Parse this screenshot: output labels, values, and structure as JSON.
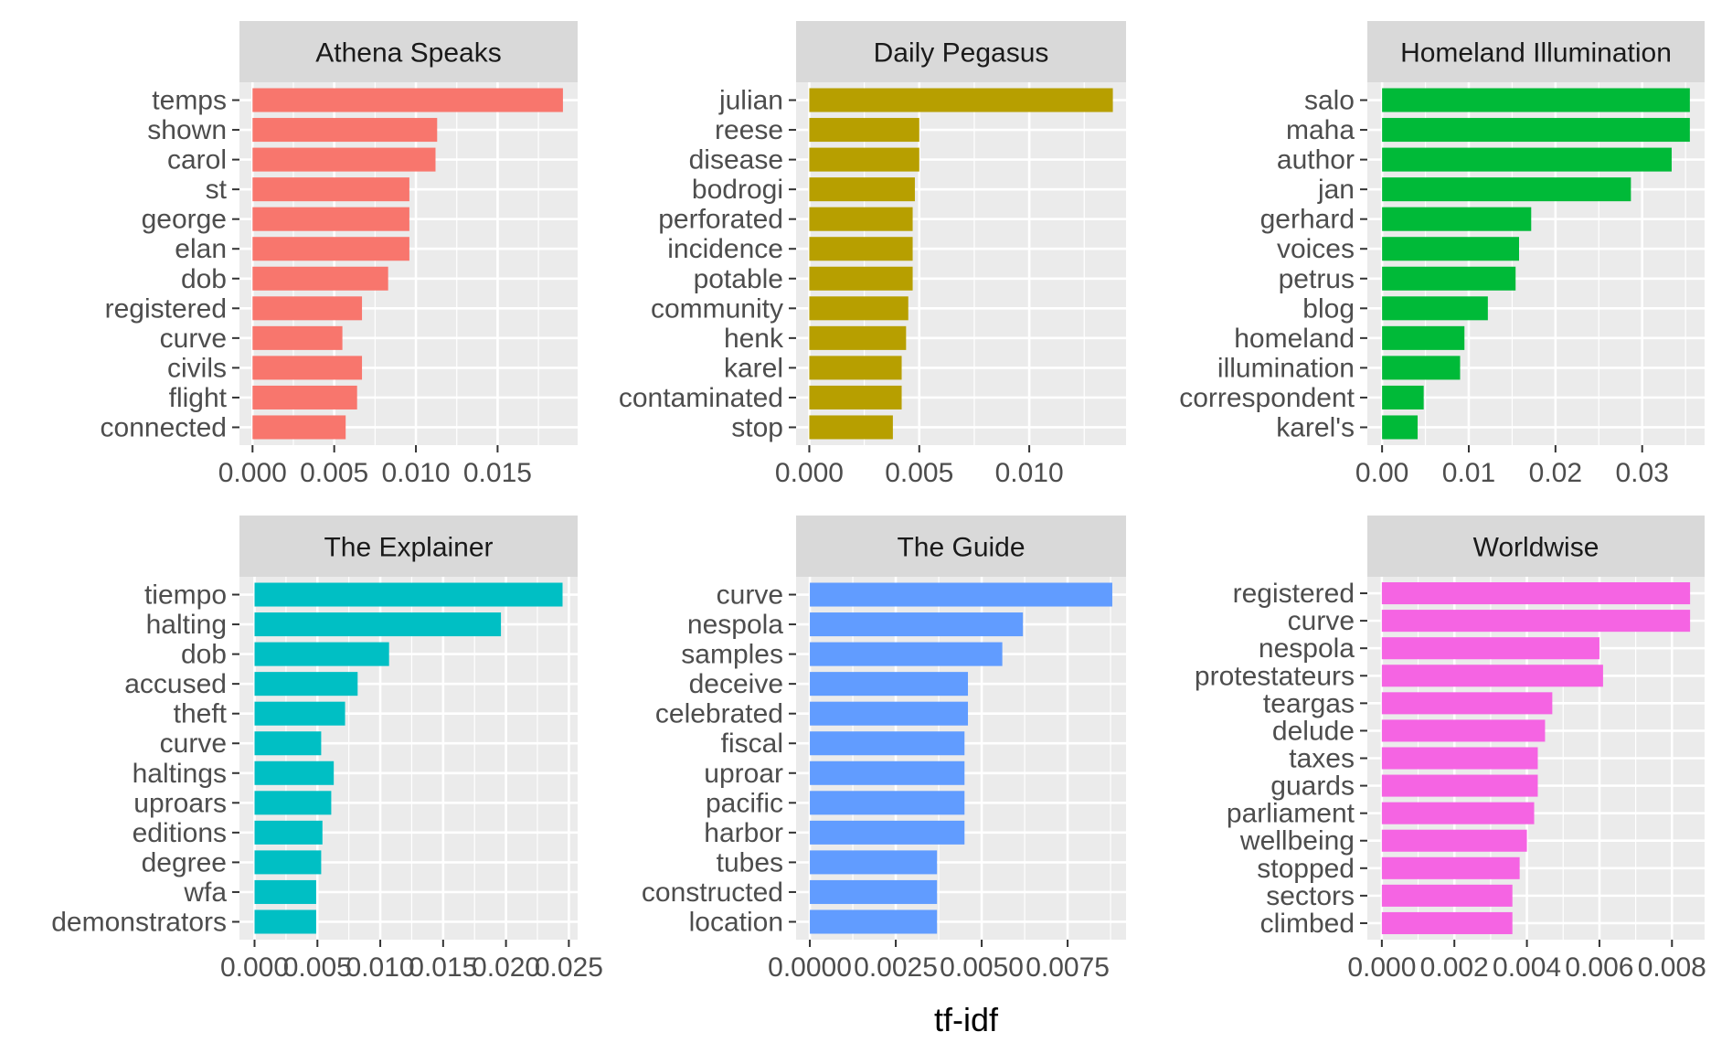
{
  "chart_data": {
    "type": "bar",
    "orientation": "horizontal",
    "facet_layout": "3 columns x 2 rows, independent scales",
    "xlabel": "tf-idf",
    "ylabel": "",
    "grid": true,
    "legend": "none",
    "panels": [
      {
        "title": "Athena Speaks",
        "color": "#F8766D",
        "categories": [
          "temps",
          "shown",
          "carol",
          "st",
          "george",
          "elan",
          "dob",
          "registered",
          "curve",
          "civils",
          "flight",
          "connected"
        ],
        "values": [
          0.019,
          0.0113,
          0.0112,
          0.0096,
          0.0096,
          0.0096,
          0.0083,
          0.0067,
          0.0055,
          0.0067,
          0.0064,
          0.0057
        ],
        "xlim": [
          -0.0008,
          0.0199
        ],
        "xticks": [
          0,
          0.005,
          0.01,
          0.015
        ],
        "xtick_labels": [
          "0.000",
          "0.005",
          "0.010",
          "0.015"
        ]
      },
      {
        "title": "Daily Pegasus",
        "color": "#B79F00",
        "categories": [
          "julian",
          "reese",
          "disease",
          "bodrogi",
          "perforated",
          "incidence",
          "potable",
          "community",
          "henk",
          "karel",
          "contaminated",
          "stop"
        ],
        "values": [
          0.0138,
          0.005,
          0.005,
          0.0048,
          0.0047,
          0.0047,
          0.0047,
          0.0045,
          0.0044,
          0.0042,
          0.0042,
          0.0038
        ],
        "xlim": [
          -0.0006,
          0.0144
        ],
        "xticks": [
          0,
          0.005,
          0.01
        ],
        "xtick_labels": [
          "0.000",
          "0.005",
          "0.010"
        ]
      },
      {
        "title": "Homeland Illumination",
        "color": "#00BA38",
        "categories": [
          "salo",
          "maha",
          "author",
          "jan",
          "gerhard",
          "voices",
          "petrus",
          "blog",
          "homeland",
          "illumination",
          "correspondent",
          "karel's"
        ],
        "values": [
          0.0355,
          0.0355,
          0.0334,
          0.0287,
          0.0172,
          0.0158,
          0.0154,
          0.0122,
          0.0095,
          0.009,
          0.0048,
          0.0041
        ],
        "xlim": [
          -0.0017,
          0.0372
        ],
        "xticks": [
          0,
          0.01,
          0.02,
          0.03
        ],
        "xtick_labels": [
          "0.00",
          "0.01",
          "0.02",
          "0.03"
        ]
      },
      {
        "title": "The Explainer",
        "color": "#00BFC4",
        "categories": [
          "tiempo",
          "halting",
          "dob",
          "accused",
          "theft",
          "curve",
          "haltings",
          "uproars",
          "editions",
          "degree",
          "wfa",
          "demonstrators"
        ],
        "values": [
          0.0245,
          0.0196,
          0.0107,
          0.0082,
          0.0072,
          0.0053,
          0.0063,
          0.0061,
          0.0054,
          0.0053,
          0.0049,
          0.0049
        ],
        "xlim": [
          -0.0012,
          0.0257
        ],
        "xticks": [
          0,
          0.005,
          0.01,
          0.015,
          0.02,
          0.025
        ],
        "xtick_labels": [
          "0.000",
          "0.005",
          "0.010",
          "0.015",
          "0.020",
          "0.025"
        ]
      },
      {
        "title": "The Guide",
        "color": "#619CFF",
        "categories": [
          "curve",
          "nespola",
          "samples",
          "deceive",
          "celebrated",
          "fiscal",
          "uproar",
          "pacific",
          "harbor",
          "tubes",
          "constructed",
          "location"
        ],
        "values": [
          0.0088,
          0.0062,
          0.0056,
          0.0046,
          0.0046,
          0.0045,
          0.0045,
          0.0045,
          0.0045,
          0.0037,
          0.0037,
          0.0037
        ],
        "xlim": [
          -0.0004,
          0.0092
        ],
        "xticks": [
          0,
          0.0025,
          0.005,
          0.0075
        ],
        "xtick_labels": [
          "0.0000",
          "0.0025",
          "0.0050",
          "0.0075"
        ]
      },
      {
        "title": "Worldwise",
        "color": "#F564E3",
        "categories": [
          "registered",
          "curve",
          "nespola",
          "protestateurs",
          "teargas",
          "delude",
          "taxes",
          "guards",
          "parliament",
          "wellbeing",
          "stopped",
          "sectors",
          "climbed"
        ],
        "values": [
          0.0085,
          0.0085,
          0.006,
          0.0061,
          0.0047,
          0.0045,
          0.0043,
          0.0043,
          0.0042,
          0.004,
          0.0038,
          0.0036,
          0.0036
        ],
        "xlim": [
          -0.0004,
          0.0089
        ],
        "xticks": [
          0,
          0.002,
          0.004,
          0.006,
          0.008
        ],
        "xtick_labels": [
          "0.000",
          "0.002",
          "0.004",
          "0.006",
          "0.008"
        ]
      }
    ]
  }
}
